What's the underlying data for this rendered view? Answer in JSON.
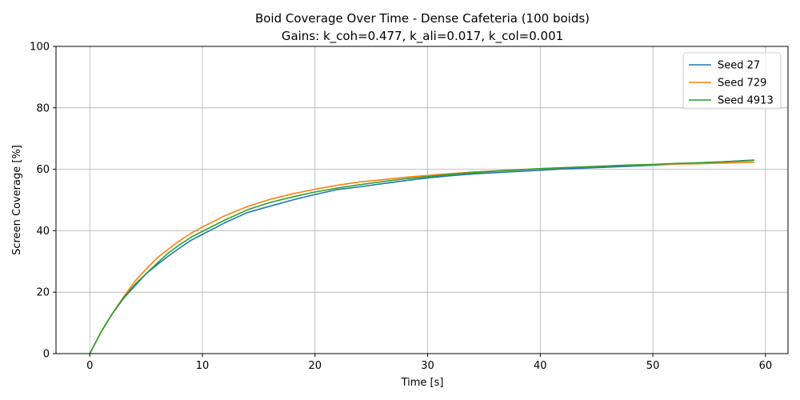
{
  "chart_data": {
    "type": "line",
    "title": "Boid Coverage Over Time - Dense Cafeteria  (100 boids)",
    "subtitle": "Gains: k_coh=0.477, k_ali=0.017, k_col=0.001",
    "xlabel": "Time [s]",
    "ylabel": "Screen Coverage [%]",
    "xlim": [
      -3,
      62
    ],
    "ylim": [
      0,
      100
    ],
    "xticks": [
      0,
      10,
      20,
      30,
      40,
      50,
      60
    ],
    "yticks": [
      0,
      20,
      40,
      60,
      80,
      100
    ],
    "grid": true,
    "legend_position": "top-right",
    "series": [
      {
        "name": "Seed 27",
        "color": "#1f77b4",
        "x": [
          0,
          1,
          2,
          3,
          4,
          5,
          6,
          7,
          8,
          9,
          10,
          12,
          14,
          16,
          18,
          20,
          22,
          24,
          26,
          28,
          30,
          32,
          34,
          36,
          38,
          40,
          42,
          44,
          46,
          48,
          50,
          52,
          54,
          56,
          58,
          59
        ],
        "values": [
          0,
          7,
          13,
          18,
          22,
          26,
          29,
          31.8,
          34.4,
          36.9,
          38.8,
          42.6,
          45.9,
          48,
          50,
          51.8,
          53.4,
          54.3,
          55.3,
          56.3,
          57.2,
          57.9,
          58.5,
          58.9,
          59.3,
          59.7,
          60.1,
          60.4,
          60.7,
          61,
          61.3,
          61.7,
          62.1,
          62.4,
          62.8,
          63
        ]
      },
      {
        "name": "Seed 729",
        "color": "#ff7f0e",
        "x": [
          0,
          1,
          2,
          3,
          4,
          5,
          6,
          7,
          8,
          9,
          10,
          12,
          14,
          16,
          18,
          20,
          22,
          24,
          26,
          28,
          30,
          32,
          34,
          36,
          38,
          40,
          42,
          44,
          46,
          48,
          50,
          52,
          54,
          56,
          58,
          59
        ],
        "values": [
          0,
          7,
          13,
          18.5,
          23.5,
          27.5,
          31.2,
          34.1,
          36.8,
          39.2,
          41.2,
          44.9,
          47.9,
          50.2,
          52,
          53.5,
          54.8,
          55.9,
          56.6,
          57.4,
          58,
          58.6,
          59.1,
          59.5,
          59.9,
          60.2,
          60.5,
          60.8,
          61.1,
          61.3,
          61.5,
          61.7,
          61.8,
          62,
          62.2,
          62.3
        ]
      },
      {
        "name": "Seed 4913",
        "color": "#2ca02c",
        "x": [
          0,
          1,
          2,
          3,
          4,
          5,
          6,
          7,
          8,
          9,
          10,
          12,
          14,
          16,
          18,
          20,
          22,
          24,
          26,
          28,
          30,
          32,
          34,
          36,
          38,
          40,
          42,
          44,
          46,
          48,
          50,
          52,
          54,
          56,
          58,
          59
        ],
        "values": [
          0,
          7,
          13,
          18.2,
          22.5,
          26,
          29.5,
          32.8,
          35.5,
          37.9,
          39.8,
          43.5,
          46.8,
          49.2,
          51,
          52.6,
          53.9,
          55,
          56,
          56.9,
          57.6,
          58.3,
          58.9,
          59.4,
          59.8,
          60.2,
          60.5,
          60.8,
          61.1,
          61.4,
          61.6,
          61.9,
          62.1,
          62.4,
          62.7,
          62.9
        ]
      }
    ]
  }
}
